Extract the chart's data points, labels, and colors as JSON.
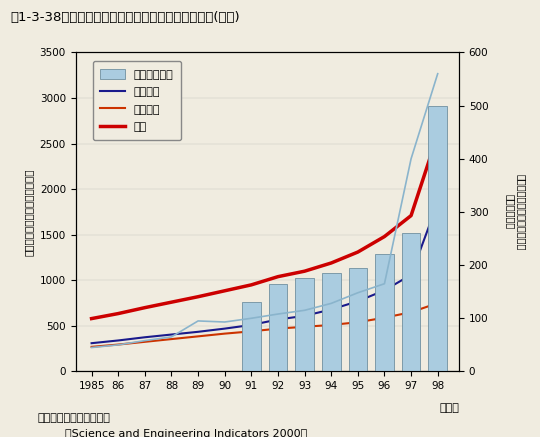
{
  "title": "第1-3-38図　大学が取得した特許数及び特許使用料(米国)",
  "years": [
    1985,
    1986,
    1987,
    1988,
    1989,
    1990,
    1991,
    1992,
    1993,
    1994,
    1995,
    1996,
    1997,
    1998
  ],
  "bar_years": [
    1991,
    1992,
    1993,
    1994,
    1995,
    1996,
    1997,
    1998
  ],
  "bar_royalty_values": [
    130,
    165,
    175,
    185,
    195,
    220,
    260,
    500
  ],
  "public_univ": [
    310,
    340,
    375,
    405,
    435,
    470,
    510,
    570,
    610,
    680,
    770,
    890,
    1060,
    1850
  ],
  "private_univ": [
    270,
    295,
    325,
    355,
    385,
    415,
    440,
    470,
    490,
    510,
    540,
    590,
    650,
    750
  ],
  "total_patents": [
    580,
    635,
    700,
    760,
    820,
    885,
    950,
    1040,
    1100,
    1190,
    1310,
    1480,
    1710,
    2600
  ],
  "royalty_total_line": [
    45,
    50,
    58,
    65,
    95,
    93,
    100,
    108,
    115,
    128,
    148,
    165,
    400,
    560
  ],
  "xtick_labels": [
    "1985",
    "86",
    "87",
    "88",
    "89",
    "90",
    "91",
    "92",
    "93",
    "94",
    "95",
    "96",
    "97",
    "98"
  ],
  "ylim_left": [
    0,
    3500
  ],
  "ylim_right": [
    0,
    600
  ],
  "yticks_left": [
    0,
    500,
    1000,
    1500,
    2000,
    2500,
    3000,
    3500
  ],
  "yticks_right": [
    0,
    100,
    200,
    300,
    400,
    500,
    600
  ],
  "bar_color": "#aacce0",
  "bar_edge_color": "#7090a0",
  "public_color": "#1a1a8c",
  "private_color": "#cc3300",
  "total_color": "#cc0000",
  "royalty_line_color": "#8ab4cc",
  "bg_color": "#f0ece0",
  "plot_bg_color": "#f0ece0",
  "legend_labels": [
    "特許権使用料",
    "公立大学",
    "私立大学",
    "合計"
  ],
  "ylabel_left_chars": [
    "大",
    "学",
    "が",
    "取",
    "得",
    "し",
    "た",
    "特",
    "許",
    "数",
    "（",
    "件",
    "数",
    "）"
  ],
  "ylabel_right_chars": [
    "大",
    "学",
    "が",
    "取",
    "得",
    "し",
    "た",
    "特",
    "許",
    "権",
    "使",
    "用",
    "料",
    "（",
    "百",
    "万",
    "ド",
    "ル",
    "）"
  ],
  "note1": "資料：米国国立科学財団",
  "note2": "「Science and Engineering Indicators 2000」",
  "xlabel_text": "（年）"
}
